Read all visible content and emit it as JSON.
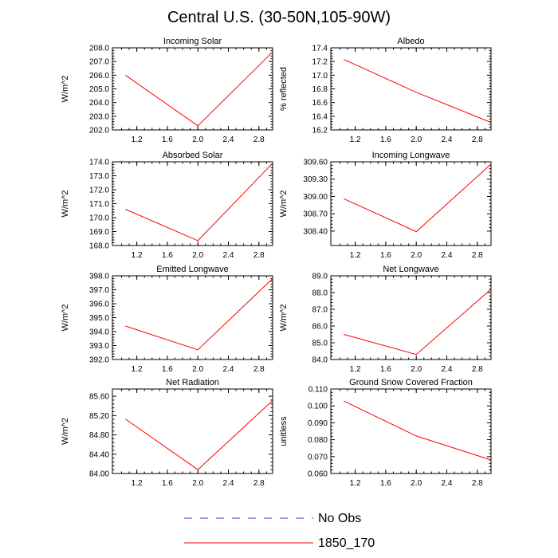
{
  "title": "Central U.S. (30-50N,105-90W)",
  "legend": [
    {
      "label": "No Obs",
      "color": "#3f3fbf",
      "dash": true
    },
    {
      "label": "1850_170",
      "color": "#ff0000",
      "dash": false
    }
  ],
  "chart_data": [
    {
      "type": "line",
      "title": "Incoming Solar",
      "ylabel": "W/m^2",
      "x": [
        1.05,
        2.0,
        2.98
      ],
      "series": [
        {
          "values": [
            206.0,
            202.3,
            207.7
          ],
          "color": "#ff0000"
        }
      ],
      "xlim": [
        0.88,
        2.98
      ],
      "ylim": [
        202.0,
        208.0
      ],
      "xticks": [
        "1.2",
        "1.6",
        "2.0",
        "2.4",
        "2.8"
      ],
      "yticks": [
        "202.0",
        "203.0",
        "204.0",
        "205.0",
        "206.0",
        "207.0",
        "208.0"
      ]
    },
    {
      "type": "line",
      "title": "Albedo",
      "ylabel": "% reflected",
      "x": [
        1.05,
        2.0,
        2.98
      ],
      "series": [
        {
          "values": [
            17.23,
            16.75,
            16.31
          ],
          "color": "#ff0000"
        }
      ],
      "xlim": [
        0.88,
        2.98
      ],
      "ylim": [
        16.2,
        17.4
      ],
      "xticks": [
        "1.2",
        "1.6",
        "2.0",
        "2.4",
        "2.8"
      ],
      "yticks": [
        "16.2",
        "16.4",
        "16.6",
        "16.8",
        "17.0",
        "17.2",
        "17.4"
      ]
    },
    {
      "type": "line",
      "title": "Absorbed Solar",
      "ylabel": "W/m^2",
      "x": [
        1.05,
        2.0,
        2.98
      ],
      "series": [
        {
          "values": [
            170.6,
            168.35,
            173.9
          ],
          "color": "#ff0000"
        }
      ],
      "xlim": [
        0.88,
        2.98
      ],
      "ylim": [
        168.0,
        174.0
      ],
      "xticks": [
        "1.2",
        "1.6",
        "2.0",
        "2.4",
        "2.8"
      ],
      "yticks": [
        "168.0",
        "169.0",
        "170.0",
        "171.0",
        "172.0",
        "173.0",
        "174.0"
      ]
    },
    {
      "type": "line",
      "title": "Incoming Longwave",
      "ylabel": "W/m^2",
      "x": [
        1.05,
        2.0,
        2.98
      ],
      "series": [
        {
          "values": [
            308.96,
            308.39,
            309.56
          ],
          "color": "#ff0000"
        }
      ],
      "xlim": [
        0.88,
        2.98
      ],
      "ylim": [
        308.15,
        309.6
      ],
      "xticks": [
        "1.2",
        "1.6",
        "2.0",
        "2.4",
        "2.8"
      ],
      "yticks": [
        "308.40",
        "308.70",
        "309.00",
        "309.30",
        "309.60"
      ],
      "ytick_values": [
        308.4,
        308.7,
        309.0,
        309.3,
        309.6
      ]
    },
    {
      "type": "line",
      "title": "Emitted Longwave",
      "ylabel": "W/m^2",
      "x": [
        1.05,
        2.0,
        2.98
      ],
      "series": [
        {
          "values": [
            394.4,
            392.7,
            397.8
          ],
          "color": "#ff0000"
        }
      ],
      "xlim": [
        0.88,
        2.98
      ],
      "ylim": [
        392.0,
        398.0
      ],
      "xticks": [
        "1.2",
        "1.6",
        "2.0",
        "2.4",
        "2.8"
      ],
      "yticks": [
        "392.0",
        "393.0",
        "394.0",
        "395.0",
        "396.0",
        "397.0",
        "398.0"
      ]
    },
    {
      "type": "line",
      "title": "Net Longwave",
      "ylabel": "W/m^2",
      "x": [
        1.05,
        2.0,
        2.98
      ],
      "series": [
        {
          "values": [
            85.5,
            84.3,
            88.2
          ],
          "color": "#ff0000"
        }
      ],
      "xlim": [
        0.88,
        2.98
      ],
      "ylim": [
        84.0,
        89.0
      ],
      "xticks": [
        "1.2",
        "1.6",
        "2.0",
        "2.4",
        "2.8"
      ],
      "yticks": [
        "84.0",
        "85.0",
        "86.0",
        "87.0",
        "88.0",
        "89.0"
      ]
    },
    {
      "type": "line",
      "title": "Net Radiation",
      "ylabel": "W/m^2",
      "x": [
        1.05,
        2.0,
        2.98
      ],
      "series": [
        {
          "values": [
            85.13,
            84.08,
            85.51
          ],
          "color": "#ff0000"
        }
      ],
      "xlim": [
        0.88,
        2.98
      ],
      "ylim": [
        84.0,
        85.75
      ],
      "xticks": [
        "1.2",
        "1.6",
        "2.0",
        "2.4",
        "2.8"
      ],
      "yticks": [
        "84.00",
        "84.40",
        "84.80",
        "85.20",
        "85.60"
      ],
      "ytick_values": [
        84.0,
        84.4,
        84.8,
        85.2,
        85.6
      ]
    },
    {
      "type": "line",
      "title": "Ground Snow Covered Fraction",
      "ylabel": "unitless",
      "x": [
        1.05,
        2.0,
        2.98
      ],
      "series": [
        {
          "values": [
            0.1029,
            0.0822,
            0.068
          ],
          "color": "#ff0000"
        }
      ],
      "xlim": [
        0.88,
        2.98
      ],
      "ylim": [
        0.06,
        0.11
      ],
      "xticks": [
        "1.2",
        "1.6",
        "2.0",
        "2.4",
        "2.8"
      ],
      "yticks": [
        "0.060",
        "0.070",
        "0.080",
        "0.090",
        "0.100",
        "0.110"
      ]
    }
  ]
}
